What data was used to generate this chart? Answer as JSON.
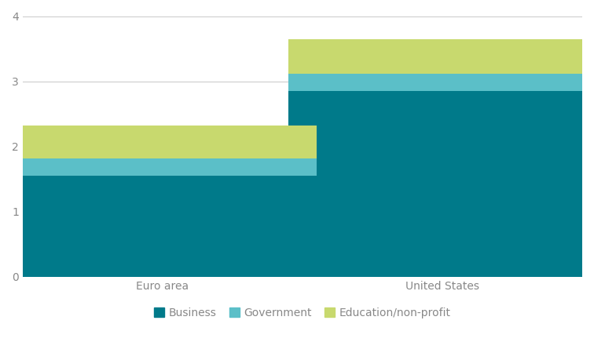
{
  "categories": [
    "Euro area",
    "United States"
  ],
  "business": [
    1.55,
    2.85
  ],
  "government": [
    0.27,
    0.27
  ],
  "education": [
    0.5,
    0.52
  ],
  "colors": {
    "business": "#007a8a",
    "government": "#5bbfc8",
    "education": "#c8d96e"
  },
  "legend_labels": [
    "Business",
    "Government",
    "Education/non-profit"
  ],
  "ylim": [
    0,
    4
  ],
  "yticks": [
    0,
    1,
    2,
    3,
    4
  ],
  "background_color": "#ffffff",
  "grid_color": "#cccccc",
  "tick_label_color": "#888888",
  "bar_width": 0.55,
  "x_positions": [
    0.25,
    0.75
  ],
  "figsize": [
    7.56,
    4.5
  ],
  "dpi": 100
}
